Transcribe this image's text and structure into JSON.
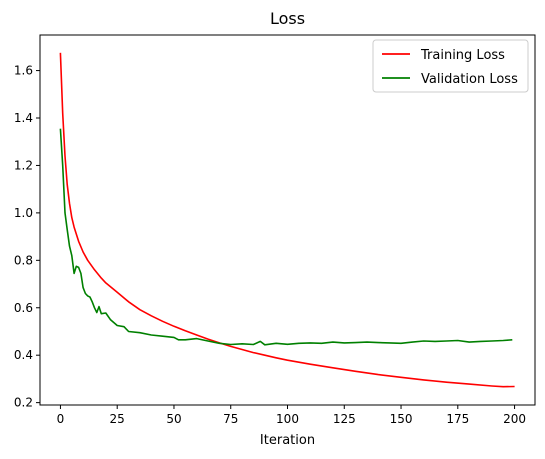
{
  "chart_data": {
    "type": "line",
    "title": "Loss",
    "xlabel": "Iteration",
    "ylabel": "",
    "xlim": [
      -9,
      209
    ],
    "ylim": [
      0.19,
      1.75
    ],
    "xticks": [
      0,
      25,
      50,
      75,
      100,
      125,
      150,
      175,
      200
    ],
    "yticks": [
      0.2,
      0.4,
      0.6,
      0.8,
      1.0,
      1.2,
      1.4,
      1.6
    ],
    "ytick_labels": [
      "0.2",
      "0.4",
      "0.6",
      "0.8",
      "1.0",
      "1.2",
      "1.4",
      "1.6"
    ],
    "grid": false,
    "legend_position": "top-right",
    "series": [
      {
        "name": "Training Loss",
        "color": "#ff0000",
        "points": [
          [
            0,
            1.675
          ],
          [
            1,
            1.42
          ],
          [
            2,
            1.24
          ],
          [
            3,
            1.12
          ],
          [
            4,
            1.04
          ],
          [
            5,
            0.98
          ],
          [
            6,
            0.94
          ],
          [
            8,
            0.88
          ],
          [
            10,
            0.835
          ],
          [
            12,
            0.8
          ],
          [
            15,
            0.76
          ],
          [
            18,
            0.725
          ],
          [
            20,
            0.705
          ],
          [
            25,
            0.665
          ],
          [
            30,
            0.625
          ],
          [
            35,
            0.592
          ],
          [
            40,
            0.566
          ],
          [
            45,
            0.543
          ],
          [
            50,
            0.522
          ],
          [
            55,
            0.503
          ],
          [
            60,
            0.485
          ],
          [
            65,
            0.468
          ],
          [
            70,
            0.452
          ],
          [
            75,
            0.437
          ],
          [
            80,
            0.424
          ],
          [
            85,
            0.411
          ],
          [
            90,
            0.4
          ],
          [
            95,
            0.389
          ],
          [
            100,
            0.379
          ],
          [
            110,
            0.362
          ],
          [
            120,
            0.347
          ],
          [
            130,
            0.332
          ],
          [
            140,
            0.318
          ],
          [
            150,
            0.307
          ],
          [
            160,
            0.296
          ],
          [
            170,
            0.286
          ],
          [
            180,
            0.278
          ],
          [
            190,
            0.27
          ],
          [
            195,
            0.267
          ],
          [
            200,
            0.268
          ]
        ]
      },
      {
        "name": "Validation Loss",
        "color": "#008000",
        "points": [
          [
            0,
            1.355
          ],
          [
            1,
            1.2
          ],
          [
            2,
            1.0
          ],
          [
            3,
            0.93
          ],
          [
            4,
            0.86
          ],
          [
            5,
            0.82
          ],
          [
            6,
            0.745
          ],
          [
            7,
            0.775
          ],
          [
            8,
            0.77
          ],
          [
            9,
            0.745
          ],
          [
            10,
            0.685
          ],
          [
            11,
            0.66
          ],
          [
            12,
            0.65
          ],
          [
            13,
            0.645
          ],
          [
            14,
            0.625
          ],
          [
            15,
            0.6
          ],
          [
            16,
            0.58
          ],
          [
            17,
            0.605
          ],
          [
            18,
            0.575
          ],
          [
            20,
            0.578
          ],
          [
            22,
            0.55
          ],
          [
            25,
            0.525
          ],
          [
            28,
            0.52
          ],
          [
            30,
            0.5
          ],
          [
            35,
            0.495
          ],
          [
            40,
            0.485
          ],
          [
            45,
            0.48
          ],
          [
            50,
            0.475
          ],
          [
            52,
            0.465
          ],
          [
            55,
            0.465
          ],
          [
            60,
            0.47
          ],
          [
            65,
            0.46
          ],
          [
            70,
            0.45
          ],
          [
            75,
            0.445
          ],
          [
            80,
            0.448
          ],
          [
            85,
            0.445
          ],
          [
            88,
            0.458
          ],
          [
            90,
            0.444
          ],
          [
            95,
            0.45
          ],
          [
            100,
            0.446
          ],
          [
            105,
            0.45
          ],
          [
            110,
            0.452
          ],
          [
            115,
            0.45
          ],
          [
            120,
            0.455
          ],
          [
            125,
            0.452
          ],
          [
            130,
            0.453
          ],
          [
            135,
            0.455
          ],
          [
            140,
            0.453
          ],
          [
            145,
            0.452
          ],
          [
            150,
            0.45
          ],
          [
            155,
            0.455
          ],
          [
            160,
            0.46
          ],
          [
            165,
            0.458
          ],
          [
            170,
            0.46
          ],
          [
            175,
            0.462
          ],
          [
            180,
            0.455
          ],
          [
            185,
            0.458
          ],
          [
            190,
            0.46
          ],
          [
            195,
            0.462
          ],
          [
            199,
            0.465
          ]
        ]
      }
    ]
  }
}
